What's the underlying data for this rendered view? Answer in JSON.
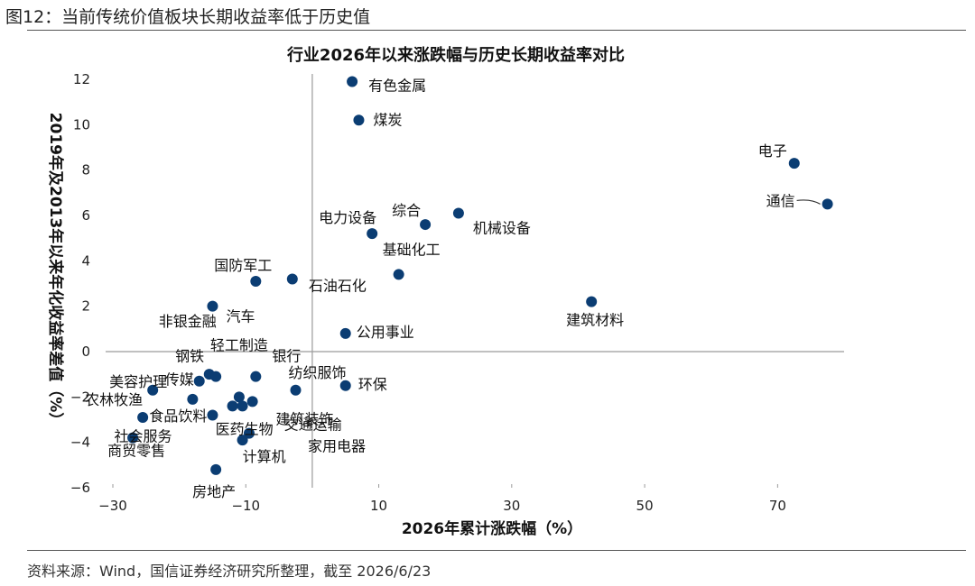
{
  "figure": {
    "caption": "图12：当前传统价值板块长期收益率低于历史值",
    "source": "资料来源：Wind，国信证券经济研究所整理，截至 2026/6/23"
  },
  "chart_data": {
    "type": "scatter",
    "title": "行业2026年以来涨跌幅与历史长期收益率对比",
    "xlabel": "2026年累计涨跌幅（%）",
    "ylabel": "2019年及2013年以来年化收益率差值（%）",
    "xlim": [
      -30,
      80
    ],
    "ylim": [
      -6,
      12
    ],
    "xticks": [
      -30,
      -10,
      10,
      30,
      50,
      70
    ],
    "yticks": [
      -6,
      -4,
      -2,
      0,
      2,
      4,
      6,
      8,
      10,
      12
    ],
    "marker_color": "#0b3d73",
    "points": [
      {
        "name": "有色金属",
        "x": 6.0,
        "y": 11.9
      },
      {
        "name": "煤炭",
        "x": 7.0,
        "y": 10.2
      },
      {
        "name": "电子",
        "x": 72.5,
        "y": 8.3
      },
      {
        "name": "通信",
        "x": 77.5,
        "y": 6.5
      },
      {
        "name": "综合",
        "x": 17.0,
        "y": 5.6
      },
      {
        "name": "机械设备",
        "x": 22.0,
        "y": 6.1
      },
      {
        "name": "电力设备",
        "x": 9.0,
        "y": 5.2
      },
      {
        "name": "基础化工",
        "x": 13.0,
        "y": 3.4
      },
      {
        "name": "国防军工",
        "x": -8.5,
        "y": 3.1
      },
      {
        "name": "石油石化",
        "x": -3.0,
        "y": 3.2
      },
      {
        "name": "汽车",
        "x": -15.0,
        "y": 2.0
      },
      {
        "name": "建筑材料",
        "x": 42.0,
        "y": 2.2
      },
      {
        "name": "公用事业",
        "x": 5.0,
        "y": 0.8
      },
      {
        "name": "非银金融",
        "x": -15.5,
        "y": -1.0
      },
      {
        "name": "钢铁",
        "x": -14.5,
        "y": -1.1
      },
      {
        "name": "轻工制造",
        "x": -11.0,
        "y": -2.0
      },
      {
        "name": "银行",
        "x": -8.5,
        "y": -1.1
      },
      {
        "name": "纺织服饰",
        "x": -2.5,
        "y": -1.7
      },
      {
        "name": "环保",
        "x": 5.0,
        "y": -1.5
      },
      {
        "name": "美容护理",
        "x": -24.0,
        "y": -1.7
      },
      {
        "name": "农林牧渔",
        "x": -25.5,
        "y": -2.9
      },
      {
        "name": "食品饮料",
        "x": -18.0,
        "y": -2.1
      },
      {
        "name": "传媒",
        "x": -17.0,
        "y": -1.3
      },
      {
        "name": "医药生物",
        "x": -10.5,
        "y": -2.4
      },
      {
        "name": "交通运输",
        "x": -9.0,
        "y": -2.2
      },
      {
        "name": "建筑装饰",
        "x": -12.0,
        "y": -2.4
      },
      {
        "name": "社会服务",
        "x": -15.0,
        "y": -2.8
      },
      {
        "name": "家用电器",
        "x": -9.5,
        "y": -3.6
      },
      {
        "name": "计算机",
        "x": -10.5,
        "y": -3.9
      },
      {
        "name": "商贸零售",
        "x": -27.0,
        "y": -3.8
      },
      {
        "name": "房地产",
        "x": -14.5,
        "y": -5.2
      }
    ]
  }
}
